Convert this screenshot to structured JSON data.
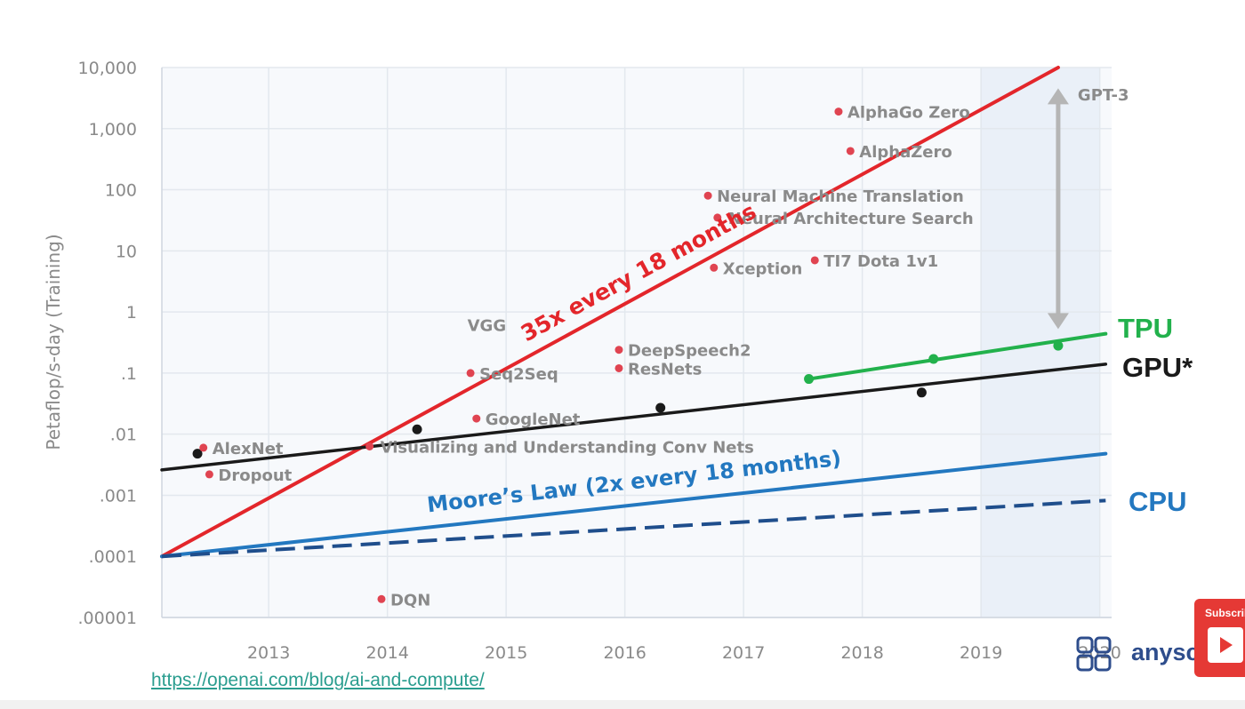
{
  "chart_data": {
    "type": "scatter",
    "title": "",
    "xlabel": "",
    "ylabel": "Petaflop/s-day (Training)",
    "xlim": [
      2012.1,
      2020.1
    ],
    "ylim": [
      1e-05,
      10000
    ],
    "yscale": "log",
    "x_ticks": [
      2013,
      2014,
      2015,
      2016,
      2017,
      2018,
      2019,
      2020
    ],
    "x_tick_labels": [
      "2013",
      "2014",
      "2015",
      "2016",
      "2017",
      "2018",
      "2019",
      "2020"
    ],
    "y_ticks": [
      1e-05,
      0.0001,
      0.001,
      0.01,
      0.1,
      1,
      10,
      100,
      1000,
      10000
    ],
    "y_tick_labels": [
      ".00001",
      ".0001",
      ".001",
      ".01",
      ".1",
      "1",
      "10",
      "100",
      "1,000",
      "10,000"
    ],
    "grid": true,
    "highlight_region": {
      "x": [
        2019.0,
        2020.0
      ]
    },
    "models": [
      {
        "name": "AlexNet",
        "x": 2012.45,
        "y": 0.006
      },
      {
        "name": "Dropout",
        "x": 2012.5,
        "y": 0.0022
      },
      {
        "name": "DQN",
        "x": 2013.95,
        "y": 2e-05
      },
      {
        "name": "Visualizing and Understanding Conv Nets",
        "x": 2013.85,
        "y": 0.0063
      },
      {
        "name": "VGG",
        "x": 2014.7,
        "y": 0.25
      },
      {
        "name": "Seq2Seq",
        "x": 2014.7,
        "y": 0.1
      },
      {
        "name": "GoogleNet",
        "x": 2014.75,
        "y": 0.018
      },
      {
        "name": "DeepSpeech2",
        "x": 2015.95,
        "y": 0.24
      },
      {
        "name": "ResNets",
        "x": 2015.95,
        "y": 0.12
      },
      {
        "name": "Xception",
        "x": 2016.75,
        "y": 5.3
      },
      {
        "name": "Neural Machine Translation",
        "x": 2016.7,
        "y": 80
      },
      {
        "name": "Neural Architecture Search",
        "x": 2016.78,
        "y": 35
      },
      {
        "name": "TI7 Dota 1v1",
        "x": 2017.6,
        "y": 7
      },
      {
        "name": "AlphaZero",
        "x": 2017.9,
        "y": 430
      },
      {
        "name": "AlphaGo Zero",
        "x": 2017.8,
        "y": 1900
      },
      {
        "name": "GPT-3",
        "x": 2019.65,
        "y": 3640
      }
    ],
    "series": [
      {
        "name": "35x every 18 months",
        "color": "#e3262b",
        "style": "solid",
        "x": [
          2012.1,
          2019.65
        ],
        "y": [
          0.0001,
          10000
        ]
      },
      {
        "name": "Moore's Law (2x every 18 months)",
        "color": "#2378c0",
        "style": "solid",
        "x": [
          2012.1,
          2020.05
        ],
        "y": [
          0.0001,
          0.0048
        ]
      },
      {
        "name": "CPU",
        "color": "#1f4e8c",
        "style": "dashed",
        "x": [
          2012.1,
          2020.05
        ],
        "y": [
          0.0001,
          0.00082
        ]
      },
      {
        "name": "GPU*",
        "color": "#1a1a1a",
        "style": "solid",
        "x": [
          2012.1,
          2020.05
        ],
        "y": [
          0.0026,
          0.14
        ],
        "points_x": [
          2012.4,
          2014.25,
          2016.3,
          2018.5
        ],
        "points_y": [
          0.0048,
          0.012,
          0.027,
          0.048
        ]
      },
      {
        "name": "TPU",
        "color": "#22b14c",
        "style": "solid",
        "x": [
          2017.55,
          2020.05
        ],
        "y": [
          0.08,
          0.44
        ],
        "points_x": [
          2017.55,
          2018.6,
          2019.65
        ],
        "points_y": [
          0.08,
          0.17,
          0.28
        ]
      }
    ],
    "annotations": [
      {
        "text": "35x every 18 months",
        "color": "#e3262b"
      },
      {
        "text": "Moore’s Law (2x every 18 months)",
        "color": "#2378c0"
      },
      {
        "text": "TPU",
        "color": "#22b14c"
      },
      {
        "text": "GPU*",
        "color": "#1a1a1a"
      },
      {
        "text": "CPU",
        "color": "#2378c0"
      }
    ],
    "arrow": {
      "x": 2019.65,
      "y_from": 0.6,
      "y_to": 4000,
      "color": "#b5b5b5"
    }
  },
  "footer": {
    "source_url": "https://openai.com/blog/ai-and-compute/",
    "brand_name": "anyscale",
    "subscribe_label": "Subscribe"
  },
  "colors": {
    "axis_text": "#8a8a8a",
    "grid": "#e3e8ee",
    "plot_bg": "#f7f9fc",
    "highlight_bg": "#eaf0f8",
    "point_red": "#e04451",
    "point_green": "#22b14c",
    "point_black": "#1a1a1a"
  }
}
